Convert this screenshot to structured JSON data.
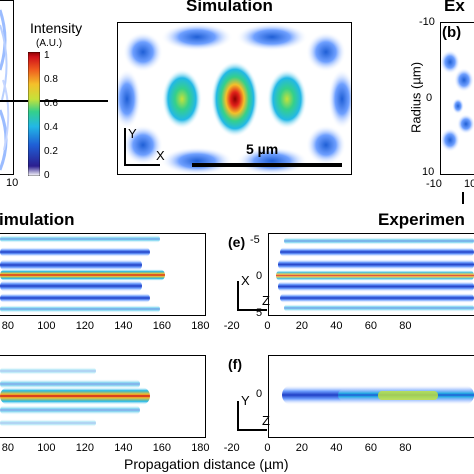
{
  "top": {
    "simulation_title": "Simulation",
    "experiment_title_partial": "Ex",
    "colorbar": {
      "title": "Intensity",
      "unit": "(A.U.)",
      "ticks": [
        "1",
        "0.8",
        "0.6",
        "0.4",
        "0.2",
        "0"
      ]
    },
    "left_panel": {
      "tick_bottom": "10"
    },
    "center_panel": {
      "axis_y": "Y",
      "axis_x": "X",
      "scalebar_label": "5 µm"
    },
    "right_panel": {
      "panel_label": "(b)",
      "ylabel": "Radius (µm)",
      "yticks": [
        "-10",
        "0",
        "10"
      ],
      "xticks": [
        "-10",
        "10"
      ]
    }
  },
  "bottom": {
    "left_title_partial": "imulation",
    "right_title_partial": "Experimen",
    "panel_e_label": "(e)",
    "panel_f_label": "(f)",
    "e_axes": {
      "y": "X",
      "x": "Z"
    },
    "f_axes": {
      "y": "Y",
      "x": "Z"
    },
    "left_xticks": [
      "80",
      "100",
      "120",
      "140",
      "160",
      "180"
    ],
    "right_yticks": [
      "-5",
      "0",
      "5"
    ],
    "right_xticks": [
      "-20",
      "0",
      "20",
      "40",
      "60",
      "80"
    ],
    "f_ytick": "0",
    "xlabel": "Propagation distance (µm)"
  },
  "colors": {
    "colormap": [
      "#2b1e8f",
      "#1f5fd6",
      "#22b8e6",
      "#35d08a",
      "#c6e23a",
      "#f4c02a",
      "#ef5a1e",
      "#d0121a",
      "#8b0000"
    ],
    "frame": "#000000",
    "background": "#ffffff"
  }
}
